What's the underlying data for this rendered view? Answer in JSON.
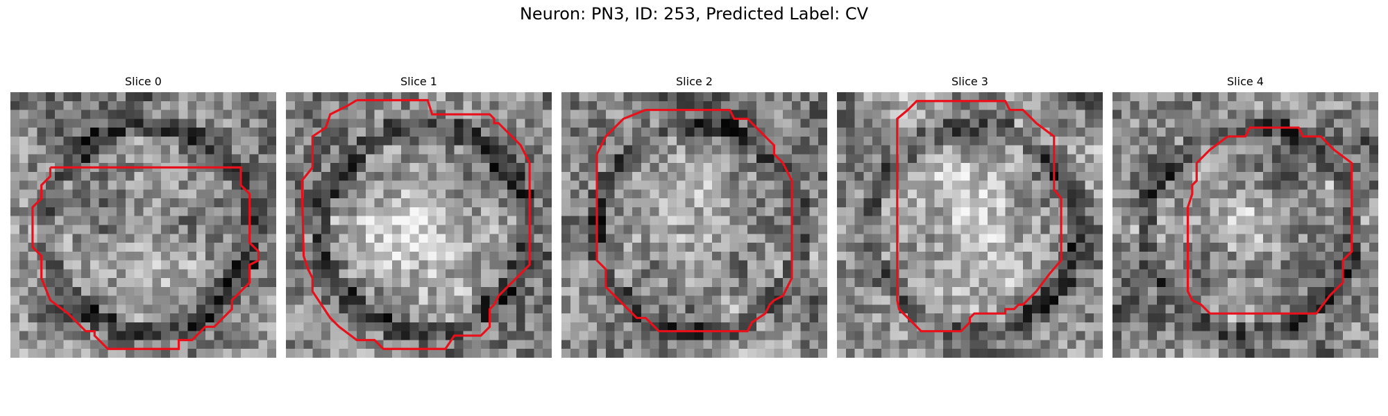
{
  "figure": {
    "title": "Neuron: PN3, ID: 253, Predicted Label: CV"
  },
  "panels": [
    {
      "title": "Slice 0",
      "seed": 11,
      "blob": 0.15,
      "contour": "slice0"
    },
    {
      "title": "Slice 1",
      "seed": 23,
      "blob": 0.45,
      "contour": "slice1"
    },
    {
      "title": "Slice 2",
      "seed": 37,
      "blob": 0.25,
      "contour": "slice2"
    },
    {
      "title": "Slice 3",
      "seed": 41,
      "blob": 0.4,
      "contour": "slice3"
    },
    {
      "title": "Slice 4",
      "seed": 59,
      "blob": 0.3,
      "contour": "slice4"
    }
  ],
  "colors": {
    "contour": "#e8101a",
    "background": "#ffffff"
  }
}
